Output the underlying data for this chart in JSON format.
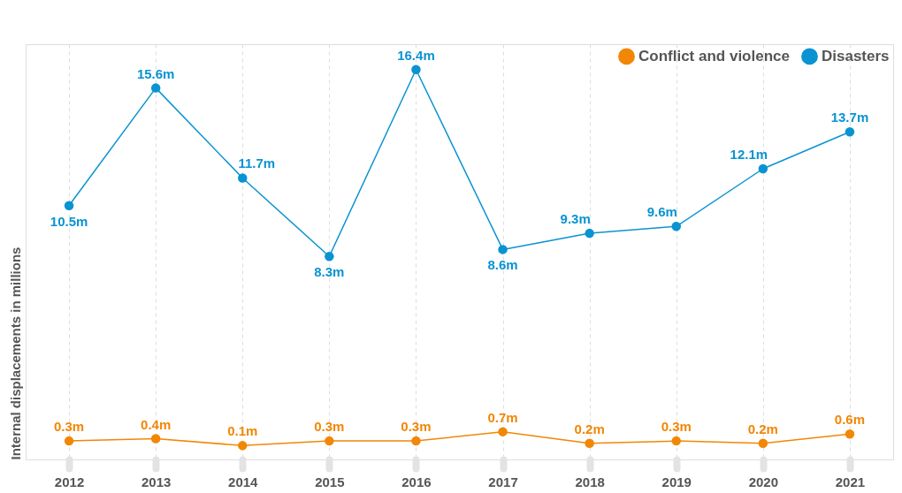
{
  "chart_data": {
    "type": "line",
    "ylabel": "Internal displacements in millions",
    "categories": [
      "2012",
      "2013",
      "2014",
      "2015",
      "2016",
      "2017",
      "2018",
      "2019",
      "2020",
      "2021"
    ],
    "series": [
      {
        "name": "Conflict and violence",
        "color": "#f28705",
        "values": [
          0.3,
          0.4,
          0.1,
          0.3,
          0.3,
          0.7,
          0.2,
          0.3,
          0.2,
          0.6
        ],
        "value_labels": [
          "0.3m",
          "0.4m",
          "0.1m",
          "0.3m",
          "0.3m",
          "0.7m",
          "0.2m",
          "0.3m",
          "0.2m",
          "0.6m"
        ]
      },
      {
        "name": "Disasters",
        "color": "#0a93d2",
        "values": [
          10.5,
          15.6,
          11.7,
          8.3,
          16.4,
          8.6,
          9.3,
          9.6,
          12.1,
          13.7
        ],
        "value_labels": [
          "10.5m",
          "15.6m",
          "11.7m",
          "8.3m",
          "16.4m",
          "8.6m",
          "9.3m",
          "9.6m",
          "12.1m",
          "13.7m"
        ]
      }
    ],
    "ylim": [
      -0.5,
      17.5
    ],
    "grid": "x",
    "legend": "top right",
    "marker": "circle",
    "line_style": "solid"
  }
}
